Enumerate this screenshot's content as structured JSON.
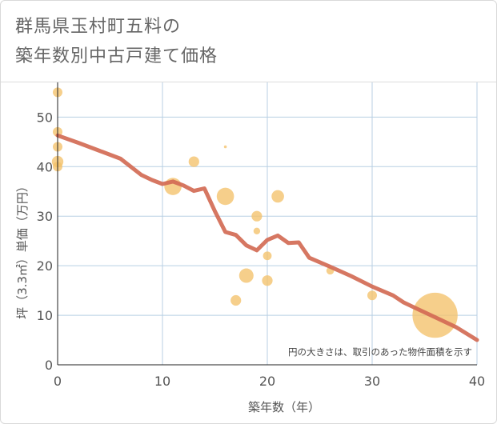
{
  "title": {
    "line1": "群馬県玉村町五料の",
    "line2": "築年数別中古戸建て価格"
  },
  "colors": {
    "bubble": "#f3c26a",
    "trend": "#d26b55",
    "grid": "#b8cfe3",
    "axis_text": "#555555"
  },
  "chart_data": {
    "type": "scatter",
    "xlabel": "築年数（年）",
    "ylabel": "坪（3.3㎡）単価（万円）",
    "xlim": [
      0,
      40
    ],
    "ylim": [
      0,
      57
    ],
    "xticks": [
      0,
      10,
      20,
      30,
      40
    ],
    "yticks": [
      0,
      10,
      20,
      30,
      40,
      50
    ],
    "annotation": "円の大きさは、取引のあった物件面積を示す",
    "bubbles": [
      {
        "x": 0,
        "y": 55,
        "size": 1.0
      },
      {
        "x": 0,
        "y": 47,
        "size": 1.0
      },
      {
        "x": 0,
        "y": 44,
        "size": 1.0
      },
      {
        "x": 0,
        "y": 41,
        "size": 1.2
      },
      {
        "x": 0,
        "y": 40,
        "size": 1.0
      },
      {
        "x": 11,
        "y": 36,
        "size": 1.8
      },
      {
        "x": 13,
        "y": 41,
        "size": 1.1
      },
      {
        "x": 16,
        "y": 34,
        "size": 1.8
      },
      {
        "x": 16,
        "y": 44,
        "size": 0.3
      },
      {
        "x": 17,
        "y": 13,
        "size": 1.1
      },
      {
        "x": 18,
        "y": 18,
        "size": 1.5
      },
      {
        "x": 19,
        "y": 30,
        "size": 1.1
      },
      {
        "x": 19,
        "y": 27,
        "size": 0.7
      },
      {
        "x": 20,
        "y": 22,
        "size": 0.9
      },
      {
        "x": 20,
        "y": 17,
        "size": 1.1
      },
      {
        "x": 21,
        "y": 34,
        "size": 1.3
      },
      {
        "x": 26,
        "y": 19,
        "size": 0.8
      },
      {
        "x": 30,
        "y": 14,
        "size": 1.0
      },
      {
        "x": 36,
        "y": 10,
        "size": 4.7
      }
    ],
    "trend": [
      {
        "x": 0,
        "y": 46.3
      },
      {
        "x": 2,
        "y": 44.8
      },
      {
        "x": 4,
        "y": 43.2
      },
      {
        "x": 6,
        "y": 41.6
      },
      {
        "x": 8,
        "y": 38.3
      },
      {
        "x": 9,
        "y": 37.3
      },
      {
        "x": 10,
        "y": 36.5
      },
      {
        "x": 11,
        "y": 37.0
      },
      {
        "x": 12,
        "y": 36.2
      },
      {
        "x": 13,
        "y": 35.1
      },
      {
        "x": 14,
        "y": 35.6
      },
      {
        "x": 15,
        "y": 31.0
      },
      {
        "x": 16,
        "y": 26.8
      },
      {
        "x": 17,
        "y": 26.2
      },
      {
        "x": 18,
        "y": 24.1
      },
      {
        "x": 19,
        "y": 23.1
      },
      {
        "x": 20,
        "y": 25.2
      },
      {
        "x": 21,
        "y": 26.1
      },
      {
        "x": 22,
        "y": 24.6
      },
      {
        "x": 23,
        "y": 24.7
      },
      {
        "x": 24,
        "y": 21.6
      },
      {
        "x": 26,
        "y": 19.8
      },
      {
        "x": 28,
        "y": 17.9
      },
      {
        "x": 30,
        "y": 15.8
      },
      {
        "x": 32,
        "y": 14.0
      },
      {
        "x": 33,
        "y": 12.6
      },
      {
        "x": 34,
        "y": 11.6
      },
      {
        "x": 36,
        "y": 9.6
      },
      {
        "x": 38,
        "y": 7.6
      },
      {
        "x": 40,
        "y": 5.0
      }
    ]
  }
}
